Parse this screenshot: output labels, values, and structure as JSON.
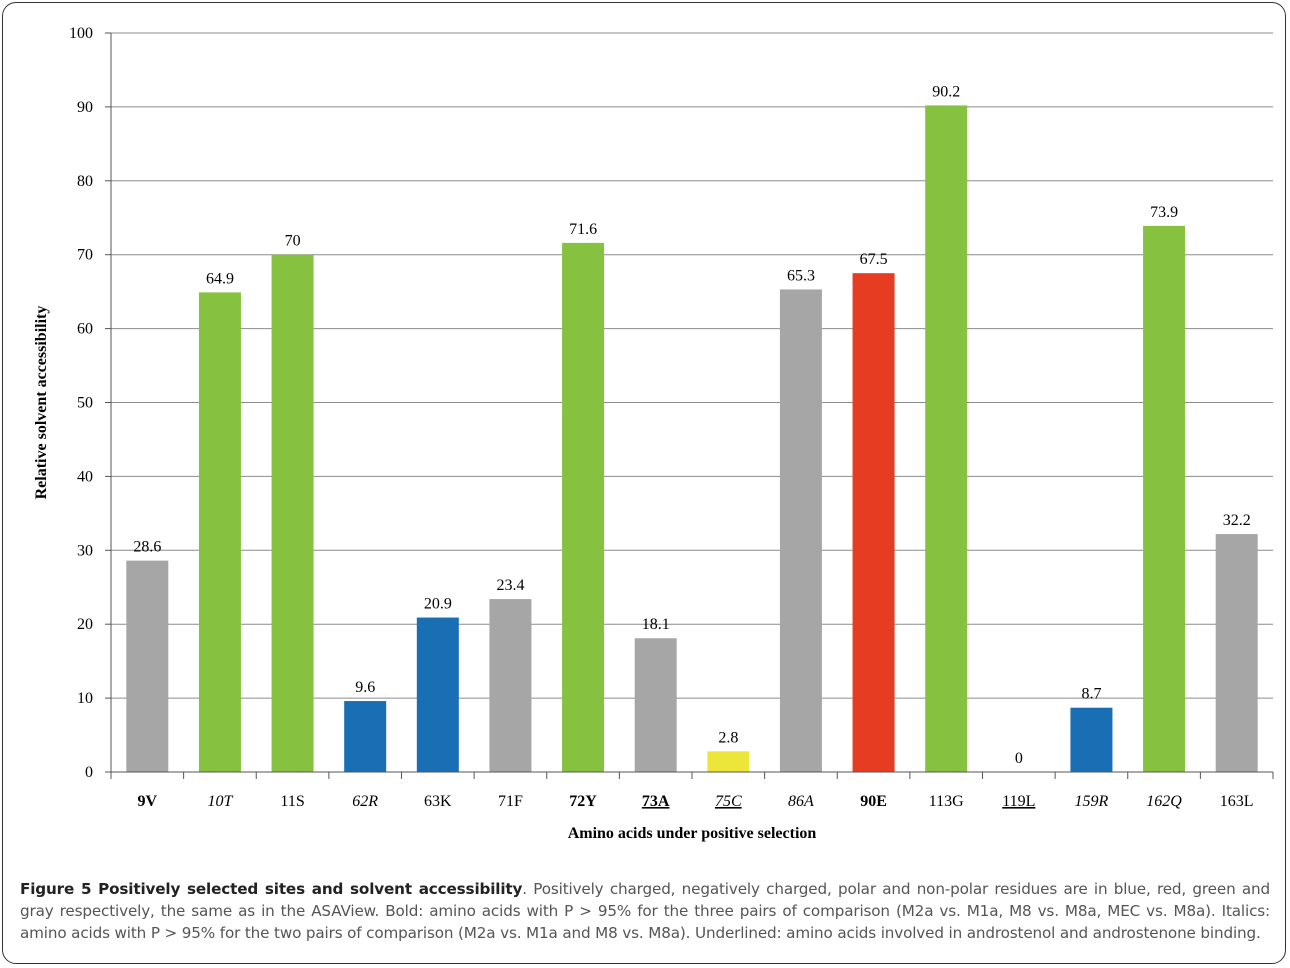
{
  "chart_data": {
    "type": "bar",
    "categories": [
      "9V",
      "10T",
      "11S",
      "62R",
      "63K",
      "71F",
      "72Y",
      "73A",
      "75C",
      "86A",
      "90E",
      "113G",
      "119L",
      "159R",
      "162Q",
      "163L"
    ],
    "category_styles": [
      {
        "bold": true,
        "italic": false,
        "underline": false
      },
      {
        "bold": false,
        "italic": true,
        "underline": false
      },
      {
        "bold": false,
        "italic": false,
        "underline": false
      },
      {
        "bold": false,
        "italic": true,
        "underline": false
      },
      {
        "bold": false,
        "italic": false,
        "underline": false
      },
      {
        "bold": false,
        "italic": false,
        "underline": false
      },
      {
        "bold": true,
        "italic": false,
        "underline": false
      },
      {
        "bold": true,
        "italic": false,
        "underline": true
      },
      {
        "bold": false,
        "italic": true,
        "underline": true
      },
      {
        "bold": false,
        "italic": true,
        "underline": false
      },
      {
        "bold": true,
        "italic": false,
        "underline": false
      },
      {
        "bold": false,
        "italic": false,
        "underline": false
      },
      {
        "bold": false,
        "italic": false,
        "underline": true
      },
      {
        "bold": false,
        "italic": true,
        "underline": false
      },
      {
        "bold": false,
        "italic": true,
        "underline": false
      },
      {
        "bold": false,
        "italic": false,
        "underline": false
      }
    ],
    "values": [
      28.6,
      64.9,
      70,
      9.6,
      20.9,
      23.4,
      71.6,
      18.1,
      2.8,
      65.3,
      67.5,
      90.2,
      0,
      8.7,
      73.9,
      32.2
    ],
    "value_labels": [
      "28.6",
      "64.9",
      "70",
      "9.6",
      "20.9",
      "23.4",
      "71.6",
      "18.1",
      "2.8",
      "65.3",
      "67.5",
      "90.2",
      "0",
      "8.7",
      "73.9",
      "32.2"
    ],
    "bar_colors": [
      "#a6a6a6",
      "#86c240",
      "#86c240",
      "#1a6eb3",
      "#1a6eb3",
      "#a6a6a6",
      "#86c240",
      "#a6a6a6",
      "#ece63a",
      "#a6a6a6",
      "#e63c22",
      "#86c240",
      "#a6a6a6",
      "#1a6eb3",
      "#86c240",
      "#a6a6a6"
    ],
    "xlabel": "Amino acids under positive selection",
    "ylabel": "Relative solvent accessibility",
    "ylim": [
      0,
      100
    ],
    "yticks": [
      0,
      10,
      20,
      30,
      40,
      50,
      60,
      70,
      80,
      90,
      100
    ],
    "grid": true,
    "gridline_color": "#8c8c8c"
  },
  "caption": {
    "figure_label": "Figure 5 Positively selected sites and solvent accessibility",
    "text": ". Positively charged, negatively charged, polar and non-polar residues are in blue, red, green and gray respectively, the same as in the ASAView. Bold: amino acids with P > 95% for the three pairs of comparison (M2a vs. M1a, M8 vs. M8a, MEC vs. M8a). Italics: amino acids with P > 95% for the two pairs of comparison (M2a vs. M1a and M8 vs. M8a). Underlined: amino acids involved in androstenol and androstenone binding."
  }
}
